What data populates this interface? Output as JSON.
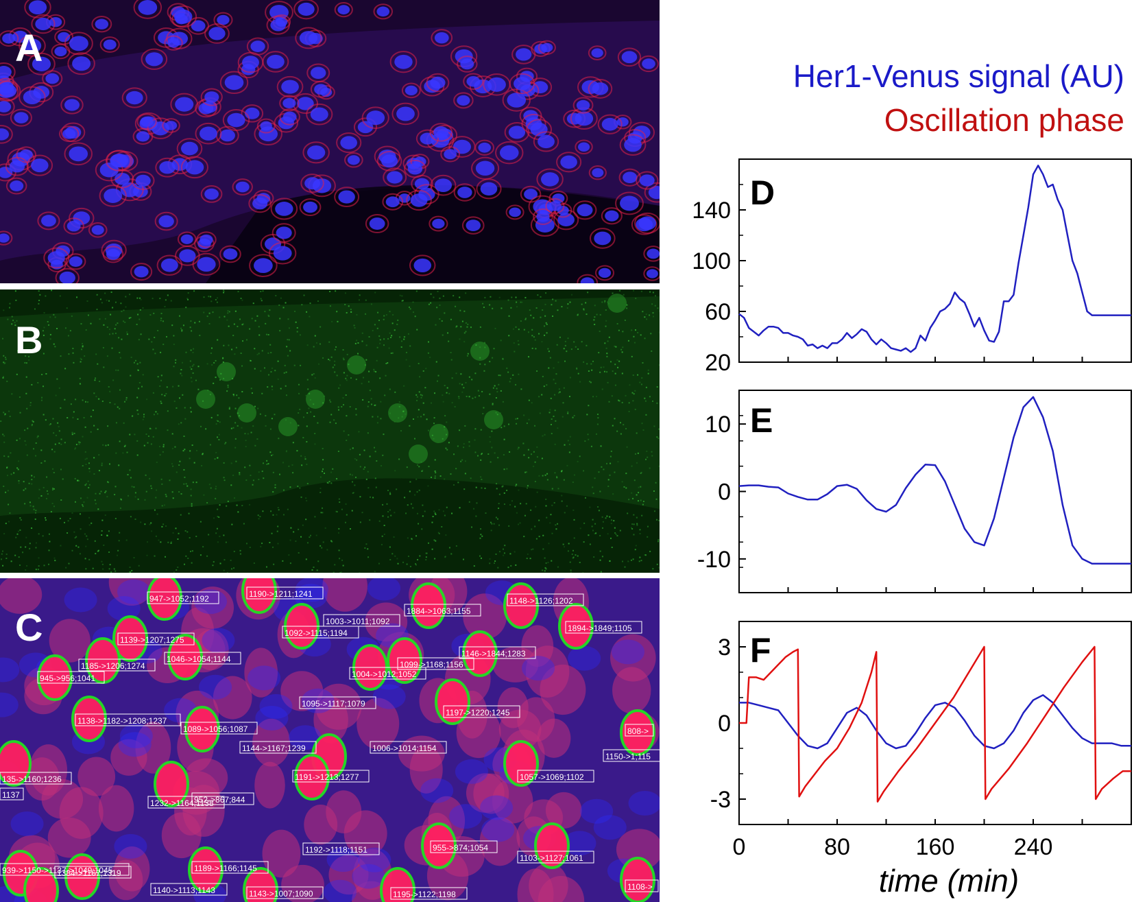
{
  "panels": {
    "a": {
      "label": "A"
    },
    "b": {
      "label": "B"
    },
    "c": {
      "label": "C",
      "tracks": [
        "947->1052;1192",
        "1190->1211;1241",
        "1884->1063;1155",
        "1148->1126;1202",
        "1003->1011;1092",
        "1092->1115;1194",
        "1894->1849;1105",
        "1139->1207;1275",
        "1046->1054;1144",
        "1146->1844;1283",
        "1185->1206;1274",
        "1099->1168;1156",
        "1004->1012;1052",
        "945->956;1041",
        "1095->1117;1079",
        "1197->1220;1245",
        "1138->1182->1208;1237",
        "1089->1056;1087",
        "1144->1167;1239",
        "1006->1014;1154",
        "808->",
        "135->1160;1236",
        "1150->1;115",
        "1191->1213;1277",
        "1057->1069;1102",
        "1137",
        "1232->1164;1138",
        "952->867;844",
        "1192->1118;1151",
        "955->874;1054",
        "1103->1127;1061",
        "939->1150->1137->1049;1045",
        "1189->1166;1145",
        "1384->1167;1319",
        "1140->1113;1143",
        "1143->1007;1090",
        "1195->1122;1198",
        "1108->"
      ]
    }
  },
  "legend": {
    "signal": "Her1-Venus signal (AU)",
    "phase": "Oscillation phase"
  },
  "colors": {
    "signal": "#2020c0",
    "phase": "#e01010",
    "legend_signal": "#1a1ac8",
    "legend_phase": "#c01010"
  },
  "chart_data": [
    {
      "panel": "D",
      "type": "line",
      "xlim": [
        0,
        320
      ],
      "ylim": [
        20,
        180
      ],
      "yticks": [
        20,
        60,
        100,
        140
      ],
      "xlabel": "",
      "ylabel": "",
      "series": [
        {
          "color": "#2020c0",
          "x": [
            0,
            4,
            8,
            12,
            16,
            20,
            24,
            28,
            32,
            36,
            40,
            44,
            48,
            52,
            56,
            60,
            64,
            68,
            72,
            76,
            80,
            84,
            88,
            92,
            96,
            100,
            104,
            108,
            112,
            116,
            120,
            124,
            128,
            132,
            136,
            140,
            144,
            148,
            152,
            156,
            160,
            164,
            168,
            172,
            176,
            180,
            184,
            188,
            192,
            196,
            200,
            204,
            208,
            212,
            216,
            220,
            224,
            228,
            232,
            236,
            240,
            244,
            248,
            252,
            256,
            260,
            264,
            268,
            272,
            276,
            280,
            284,
            288,
            292,
            296,
            300,
            304,
            308,
            312,
            316,
            320
          ],
          "y": [
            58,
            55,
            47,
            44,
            41,
            45,
            48,
            48,
            47,
            43,
            43,
            41,
            40,
            38,
            33,
            34,
            31,
            33,
            31,
            35,
            35,
            38,
            43,
            39,
            42,
            46,
            44,
            38,
            34,
            38,
            35,
            31,
            30,
            29,
            31,
            28,
            31,
            41,
            37,
            47,
            53,
            60,
            62,
            66,
            75,
            70,
            67,
            58,
            48,
            55,
            45,
            37,
            36,
            44,
            68,
            68,
            73,
            98,
            120,
            142,
            168,
            175,
            168,
            158,
            160,
            148,
            140,
            120,
            100,
            90,
            75,
            60,
            57,
            57,
            57,
            57,
            57,
            57,
            57,
            57,
            57
          ]
        }
      ]
    },
    {
      "panel": "E",
      "type": "line",
      "xlim": [
        0,
        320
      ],
      "ylim": [
        -15,
        15
      ],
      "yticks": [
        -10,
        0,
        10
      ],
      "xlabel": "",
      "ylabel": "",
      "series": [
        {
          "color": "#2020c0",
          "x": [
            0,
            8,
            16,
            24,
            32,
            40,
            48,
            56,
            64,
            72,
            80,
            88,
            96,
            104,
            112,
            120,
            128,
            136,
            144,
            152,
            160,
            168,
            176,
            184,
            192,
            200,
            208,
            216,
            224,
            232,
            240,
            248,
            256,
            264,
            272,
            280,
            288,
            296,
            304,
            312,
            320
          ],
          "y": [
            0.8,
            0.9,
            0.9,
            0.7,
            0.6,
            -0.3,
            -0.8,
            -1.2,
            -1.2,
            -0.4,
            0.8,
            1.0,
            0.4,
            -1.3,
            -2.6,
            -3.0,
            -2.0,
            0.5,
            2.5,
            4.0,
            3.9,
            1.5,
            -2.0,
            -5.5,
            -7.5,
            -8.0,
            -4.0,
            2.0,
            8.0,
            12.5,
            14.0,
            11.0,
            6.0,
            -2.0,
            -8.0,
            -10.0,
            -10.7,
            -10.7,
            -10.7,
            -10.7,
            -10.7
          ]
        }
      ]
    },
    {
      "panel": "F",
      "type": "line",
      "xlim": [
        0,
        320
      ],
      "ylim": [
        -4,
        4
      ],
      "yticks": [
        -3,
        0,
        3
      ],
      "xticks": [
        0,
        80,
        160,
        240
      ],
      "xlabel": "time (min)",
      "ylabel": "",
      "series": [
        {
          "color": "#2020c0",
          "x": [
            0,
            8,
            16,
            24,
            32,
            40,
            48,
            56,
            64,
            72,
            80,
            88,
            96,
            104,
            112,
            120,
            128,
            136,
            144,
            152,
            160,
            168,
            176,
            184,
            192,
            200,
            208,
            216,
            224,
            232,
            240,
            248,
            256,
            264,
            272,
            280,
            288,
            296,
            304,
            312,
            320
          ],
          "y": [
            0.8,
            0.8,
            0.7,
            0.6,
            0.5,
            0.0,
            -0.5,
            -0.9,
            -1.0,
            -0.8,
            -0.2,
            0.4,
            0.6,
            0.3,
            -0.3,
            -0.8,
            -1.0,
            -0.9,
            -0.4,
            0.2,
            0.7,
            0.8,
            0.6,
            0.1,
            -0.5,
            -0.9,
            -1.0,
            -0.8,
            -0.3,
            0.4,
            0.9,
            1.1,
            0.8,
            0.3,
            -0.2,
            -0.6,
            -0.8,
            -0.8,
            -0.8,
            -0.9,
            -0.9
          ]
        },
        {
          "color": "#e01010",
          "x": [
            0,
            6,
            8,
            14,
            20,
            26,
            32,
            38,
            44,
            48,
            49,
            54,
            62,
            70,
            80,
            90,
            100,
            108,
            112,
            113,
            118,
            130,
            145,
            160,
            175,
            190,
            200,
            201,
            206,
            220,
            235,
            250,
            265,
            280,
            290,
            291,
            296,
            305,
            313,
            320
          ],
          "y": [
            0.0,
            0.0,
            1.8,
            1.8,
            1.7,
            2.0,
            2.3,
            2.6,
            2.8,
            2.9,
            -2.9,
            -2.5,
            -2.0,
            -1.5,
            -1.0,
            -0.2,
            0.8,
            2.0,
            2.8,
            -3.1,
            -2.7,
            -1.9,
            -1.0,
            0.0,
            1.0,
            2.2,
            3.0,
            -3.0,
            -2.6,
            -1.8,
            -0.8,
            0.3,
            1.4,
            2.4,
            3.0,
            -3.0,
            -2.6,
            -2.2,
            -1.9,
            -1.9
          ]
        }
      ]
    }
  ]
}
